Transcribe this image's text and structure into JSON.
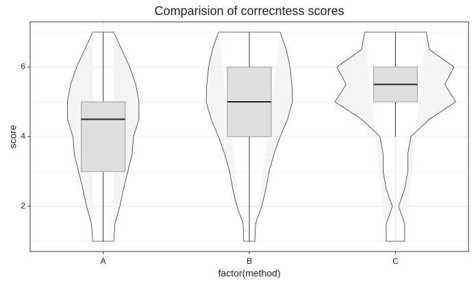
{
  "chart_data": {
    "type": "violin",
    "title": "Comparision of correcntess scores",
    "x_label": "factor(method)",
    "y_label": "score",
    "categories": [
      "A",
      "B",
      "C"
    ],
    "ylim": [
      0.706,
      7.294
    ],
    "yticks": [
      2,
      4,
      6
    ],
    "minor_yticks": [
      1,
      3,
      5,
      7
    ],
    "grid": true,
    "violin_fill": "#f5f5f5",
    "violin_stroke": "#333333",
    "box_fill": "#dedede",
    "box_stroke": "#999999",
    "density_y": [
      1,
      1.5,
      2,
      2.5,
      3,
      3.5,
      4,
      4.5,
      5,
      5.5,
      6,
      6.5,
      7
    ],
    "density": [
      [
        0.17,
        0.19,
        0.27,
        0.33,
        0.4,
        0.47,
        0.49,
        0.58,
        0.58,
        0.53,
        0.43,
        0.3,
        0.17
      ],
      [
        0.09,
        0.1,
        0.2,
        0.27,
        0.32,
        0.4,
        0.5,
        0.62,
        0.7,
        0.69,
        0.66,
        0.6,
        0.5
      ],
      [
        0.15,
        0.15,
        0.05,
        0.15,
        0.2,
        0.2,
        0.25,
        0.55,
        0.98,
        0.8,
        0.95,
        0.55,
        0.5
      ]
    ],
    "boxes": [
      {
        "min": 1,
        "q1": 3,
        "median": 4.5,
        "q3": 5,
        "max": 7
      },
      {
        "min": 1,
        "q1": 4,
        "median": 5,
        "q3": 6,
        "max": 7
      },
      {
        "min": 4,
        "q1": 5,
        "median": 5.5,
        "q3": 6,
        "max": 7
      }
    ]
  }
}
